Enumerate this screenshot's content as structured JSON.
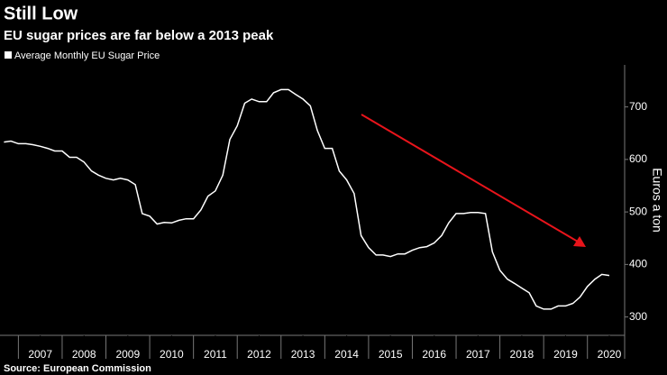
{
  "chart_data": {
    "type": "line",
    "title": "Still Low",
    "subtitle": "EU sugar prices are far below a 2013 peak",
    "y_label": "Euros a ton",
    "source": "Source: European Commission",
    "x": [
      2006.67,
      2006.83,
      2007,
      2007.17,
      2007.33,
      2007.5,
      2007.67,
      2007.83,
      2008,
      2008.17,
      2008.33,
      2008.5,
      2008.67,
      2008.83,
      2009,
      2009.17,
      2009.33,
      2009.5,
      2009.67,
      2009.83,
      2010,
      2010.17,
      2010.33,
      2010.5,
      2010.67,
      2010.83,
      2011,
      2011.17,
      2011.33,
      2011.5,
      2011.67,
      2011.83,
      2012,
      2012.17,
      2012.33,
      2012.5,
      2012.67,
      2012.83,
      2013,
      2013.17,
      2013.33,
      2013.5,
      2013.67,
      2013.83,
      2014,
      2014.17,
      2014.33,
      2014.5,
      2014.67,
      2014.83,
      2015,
      2015.17,
      2015.33,
      2015.5,
      2015.67,
      2015.83,
      2016,
      2016.17,
      2016.33,
      2016.5,
      2016.67,
      2016.83,
      2017,
      2017.17,
      2017.33,
      2017.5,
      2017.67,
      2017.83,
      2018,
      2018.17,
      2018.33,
      2018.5,
      2018.67,
      2018.83,
      2019,
      2019.17,
      2019.33,
      2019.5,
      2019.67,
      2019.83,
      2020,
      2020.17,
      2020.33,
      2020.5
    ],
    "series": [
      {
        "name": "Average Monthly EU Sugar Price",
        "color": "#ffffff",
        "values": [
          633,
          635,
          630,
          630,
          628,
          625,
          621,
          616,
          616,
          604,
          604,
          595,
          578,
          570,
          564,
          561,
          564,
          561,
          552,
          497,
          492,
          477,
          480,
          479,
          484,
          487,
          487,
          504,
          530,
          540,
          570,
          638,
          664,
          707,
          715,
          710,
          710,
          727,
          733,
          733,
          724,
          715,
          702,
          655,
          621,
          621,
          578,
          561,
          535,
          455,
          432,
          418,
          418,
          415,
          420,
          420,
          427,
          432,
          434,
          441,
          455,
          479,
          497,
          497,
          499,
          499,
          497,
          424,
          389,
          372,
          364,
          355,
          346,
          321,
          315,
          315,
          321,
          321,
          326,
          338,
          358,
          372,
          381,
          379
        ]
      }
    ],
    "xlim": [
      2006.58,
      2020.85
    ],
    "xticks": [
      {
        "value": 2007.5,
        "label": "2007"
      },
      {
        "value": 2008.5,
        "label": "2008"
      },
      {
        "value": 2009.5,
        "label": "2009"
      },
      {
        "value": 2010.5,
        "label": "2010"
      },
      {
        "value": 2011.5,
        "label": "2011"
      },
      {
        "value": 2012.5,
        "label": "2012"
      },
      {
        "value": 2013.5,
        "label": "2013"
      },
      {
        "value": 2014.5,
        "label": "2014"
      },
      {
        "value": 2015.5,
        "label": "2015"
      },
      {
        "value": 2016.5,
        "label": "2016"
      },
      {
        "value": 2017.5,
        "label": "2017"
      },
      {
        "value": 2018.5,
        "label": "2018"
      },
      {
        "value": 2019.5,
        "label": "2019"
      },
      {
        "value": 2020.5,
        "label": "2020"
      }
    ],
    "ylim": [
      265,
      780
    ],
    "yticks": [
      300,
      400,
      500,
      600,
      700
    ],
    "grid": false
  }
}
